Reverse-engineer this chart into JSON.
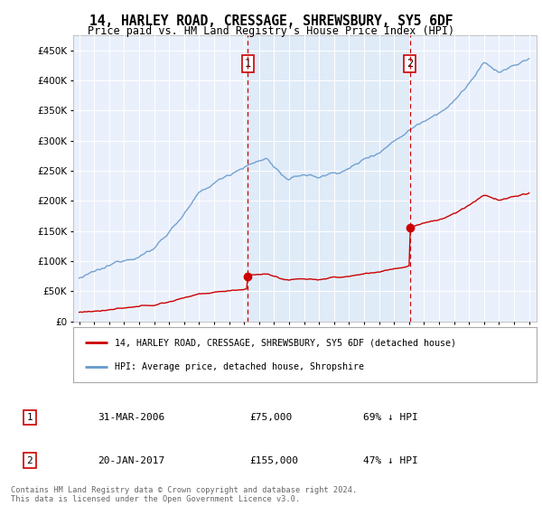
{
  "title1": "14, HARLEY ROAD, CRESSAGE, SHREWSBURY, SY5 6DF",
  "title2": "Price paid vs. HM Land Registry's House Price Index (HPI)",
  "background_color": "#eef3fb",
  "plot_bg": "#eaf0fb",
  "hpi_color": "#6699cc",
  "price_color": "#cc0000",
  "vline_color": "#cc0000",
  "shade_color": "#ddeaf8",
  "sale1_date_x": 2006.25,
  "sale1_price": 75000,
  "sale1_label": "1",
  "sale2_date_x": 2017.05,
  "sale2_price": 155000,
  "sale2_label": "2",
  "ylim_max": 475000,
  "ylim_min": 0,
  "xlim_min": 1994.6,
  "xlim_max": 2025.5,
  "legend_house": "14, HARLEY ROAD, CRESSAGE, SHREWSBURY, SY5 6DF (detached house)",
  "legend_hpi": "HPI: Average price, detached house, Shropshire",
  "table_row1_num": "1",
  "table_row1_date": "31-MAR-2006",
  "table_row1_price": "£75,000",
  "table_row1_hpi": "69% ↓ HPI",
  "table_row2_num": "2",
  "table_row2_date": "20-JAN-2017",
  "table_row2_price": "£155,000",
  "table_row2_hpi": "47% ↓ HPI",
  "footnote": "Contains HM Land Registry data © Crown copyright and database right 2024.\nThis data is licensed under the Open Government Licence v3.0."
}
